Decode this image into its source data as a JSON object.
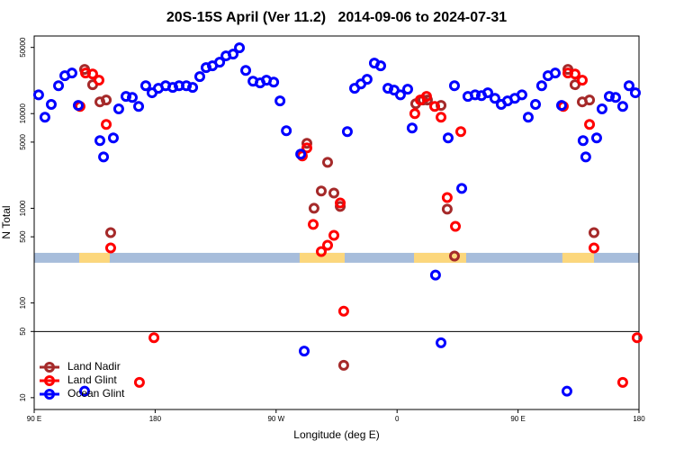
{
  "chart_data": {
    "type": "scatter",
    "title": "20S-15S April (Ver 11.2)   2014-09-06 to 2024-07-31",
    "xlabel": "Longitude (deg E)",
    "ylabel": "N Total",
    "xlim": [
      90,
      540
    ],
    "xticks": [
      {
        "value": 90,
        "label": "90 E"
      },
      {
        "value": 180,
        "label": "180"
      },
      {
        "value": 270,
        "label": "90 W"
      },
      {
        "value": 360,
        "label": "0"
      },
      {
        "value": 450,
        "label": "90 E"
      },
      {
        "value": 540,
        "label": "180"
      }
    ],
    "ylim": [
      7.5,
      66000
    ],
    "yticks": [
      10,
      50,
      100,
      500,
      1000,
      5000,
      10000,
      50000
    ],
    "log_y": true,
    "hline": 50,
    "legend": "bottom-left",
    "band": {
      "value": 300,
      "color": "#a7bddb",
      "highlight_color": "#fcd77c",
      "highlight_ranges": [
        [
          123.5,
          146.2
        ],
        [
          287.5,
          321.0
        ],
        [
          372.6,
          411.4
        ],
        [
          483.0,
          506.5
        ]
      ]
    },
    "series": [
      {
        "name": "Land Nadir",
        "color": "#a52a2a",
        "x": [
          127.5,
          133.5,
          138.9,
          143.6,
          146.9,
          292.9,
          298.2,
          303.6,
          308.3,
          313.0,
          317.7,
          320.3,
          373.9,
          379.3,
          382.6,
          392.7,
          397.3,
          402.7,
          487.1,
          492.4,
          497.8,
          503.2,
          506.5
        ],
        "values": [
          29300,
          20200,
          13300,
          13900,
          553,
          4850,
          1000,
          1520,
          3060,
          1450,
          1045,
          22,
          12700,
          13900,
          13900,
          12200,
          980,
          313,
          29300,
          20200,
          13300,
          13900,
          553
        ]
      },
      {
        "name": "Land Glint",
        "color": "#ff0000",
        "x": [
          124.1,
          128.2,
          133.5,
          138.2,
          143.6,
          146.9,
          179.1,
          168.3,
          289.5,
          292.9,
          297.6,
          303.6,
          308.3,
          313.0,
          317.7,
          320.3,
          373.2,
          377.3,
          381.9,
          388.0,
          392.7,
          397.3,
          403.4,
          407.4,
          483.7,
          487.1,
          492.4,
          497.8,
          503.2,
          506.5,
          527.9,
          538.6
        ],
        "values": [
          11900,
          26800,
          26200,
          22500,
          7690,
          381,
          43,
          14.5,
          3570,
          4340,
          675,
          349,
          407,
          518,
          1140,
          82,
          10000,
          13900,
          15200,
          11900,
          9160,
          1300,
          645,
          6450,
          11900,
          26800,
          26200,
          22500,
          7690,
          381,
          14.5,
          43
        ]
      },
      {
        "name": "Ocean Glint",
        "color": "#0000ff",
        "x": [
          93.3,
          98.0,
          102.7,
          108.1,
          112.8,
          118.1,
          122.8,
          127.5,
          138.9,
          141.6,
          148.9,
          152.9,
          158.3,
          163.0,
          167.7,
          173.0,
          177.7,
          182.4,
          187.8,
          193.1,
          197.8,
          203.2,
          207.9,
          213.2,
          217.9,
          222.6,
          228.0,
          232.7,
          238.0,
          242.7,
          247.4,
          252.8,
          258.1,
          262.8,
          268.2,
          272.9,
          277.6,
          288.3,
          290.9,
          323.0,
          328.4,
          333.1,
          337.7,
          343.1,
          347.8,
          353.2,
          357.8,
          362.5,
          367.9,
          371.2,
          388.6,
          392.7,
          398.0,
          402.7,
          408.1,
          412.7,
          418.1,
          422.8,
          427.5,
          432.8,
          437.5,
          442.2,
          447.6,
          452.9,
          457.6,
          463.0,
          467.6,
          472.3,
          477.7,
          482.4,
          486.4,
          498.4,
          500.4,
          508.5,
          512.5,
          517.9,
          522.6,
          527.9,
          532.6,
          537.3
        ],
        "values": [
          15800,
          9160,
          12500,
          19700,
          25100,
          26800,
          12200,
          11.7,
          5180,
          3490,
          5530,
          11200,
          15200,
          14800,
          11900,
          19700,
          16600,
          18500,
          19700,
          18900,
          19700,
          19700,
          18900,
          24600,
          30600,
          32000,
          34900,
          40700,
          42500,
          49500,
          28600,
          22000,
          21100,
          22500,
          21500,
          13600,
          6590,
          3730,
          31,
          6450,
          18500,
          20600,
          23000,
          34100,
          32000,
          18500,
          17700,
          15800,
          18100,
          7050,
          197,
          38,
          5530,
          19700,
          1620,
          15200,
          15800,
          15500,
          16600,
          14500,
          12500,
          13600,
          14500,
          15800,
          9160,
          12500,
          19700,
          25100,
          26800,
          12200,
          11.7,
          5180,
          3490,
          5530,
          11200,
          15200,
          14800,
          11900,
          19700,
          16600
        ]
      }
    ]
  }
}
